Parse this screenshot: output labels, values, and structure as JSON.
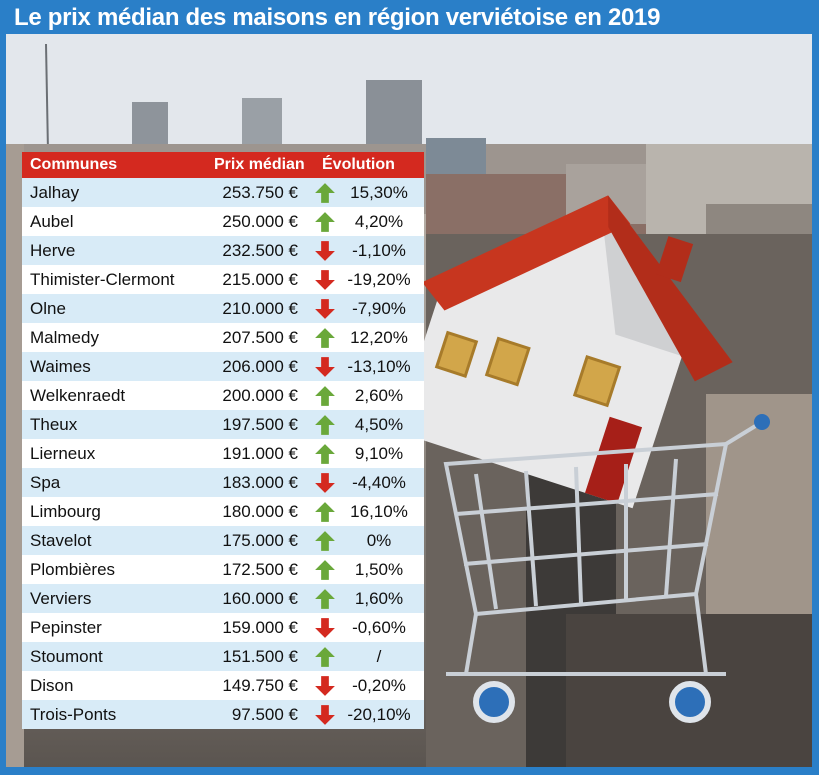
{
  "title": "Le prix médian des maisons en région verviétoise en 2019",
  "table": {
    "headers": {
      "commune": "Communes",
      "price": "Prix médian",
      "evolution": "Évolution"
    },
    "rows": [
      {
        "commune": "Jalhay",
        "price": "253.750 €",
        "trend": "up",
        "evolution": "15,30%"
      },
      {
        "commune": "Aubel",
        "price": "250.000 €",
        "trend": "up",
        "evolution": "4,20%"
      },
      {
        "commune": "Herve",
        "price": "232.500 €",
        "trend": "down",
        "evolution": "-1,10%"
      },
      {
        "commune": "Thimister-Clermont",
        "price": "215.000 €",
        "trend": "down",
        "evolution": "-19,20%"
      },
      {
        "commune": "Olne",
        "price": "210.000 €",
        "trend": "down",
        "evolution": "-7,90%"
      },
      {
        "commune": "Malmedy",
        "price": "207.500 €",
        "trend": "up",
        "evolution": "12,20%"
      },
      {
        "commune": "Waimes",
        "price": "206.000 €",
        "trend": "down",
        "evolution": "-13,10%"
      },
      {
        "commune": "Welkenraedt",
        "price": "200.000 €",
        "trend": "up",
        "evolution": "2,60%"
      },
      {
        "commune": "Theux",
        "price": "197.500 €",
        "trend": "up",
        "evolution": "4,50%"
      },
      {
        "commune": "Lierneux",
        "price": "191.000 €",
        "trend": "up",
        "evolution": "9,10%"
      },
      {
        "commune": "Spa",
        "price": "183.000 €",
        "trend": "down",
        "evolution": "-4,40%"
      },
      {
        "commune": "Limbourg",
        "price": "180.000 €",
        "trend": "up",
        "evolution": "16,10%"
      },
      {
        "commune": "Stavelot",
        "price": "175.000 €",
        "trend": "up",
        "evolution": "0%"
      },
      {
        "commune": "Plombières",
        "price": "172.500 €",
        "trend": "up",
        "evolution": "1,50%"
      },
      {
        "commune": "Verviers",
        "price": "160.000 €",
        "trend": "up",
        "evolution": "1,60%"
      },
      {
        "commune": "Pepinster",
        "price": "159.000 €",
        "trend": "down",
        "evolution": "-0,60%"
      },
      {
        "commune": "Stoumont",
        "price": "151.500 €",
        "trend": "up",
        "evolution": "/"
      },
      {
        "commune": "Dison",
        "price": "149.750 €",
        "trend": "down",
        "evolution": "-0,20%"
      },
      {
        "commune": "Trois-Ponts",
        "price": "97.500 €",
        "trend": "down",
        "evolution": "-20,10%"
      }
    ]
  },
  "colors": {
    "frame": "#2a7fc8",
    "header": "#d4291f",
    "row_alt": "#d8ebf7",
    "arrow_up": "#6aa83a",
    "arrow_down": "#d4291f"
  },
  "icons": {
    "up": "arrow-up-icon",
    "down": "arrow-down-icon"
  }
}
